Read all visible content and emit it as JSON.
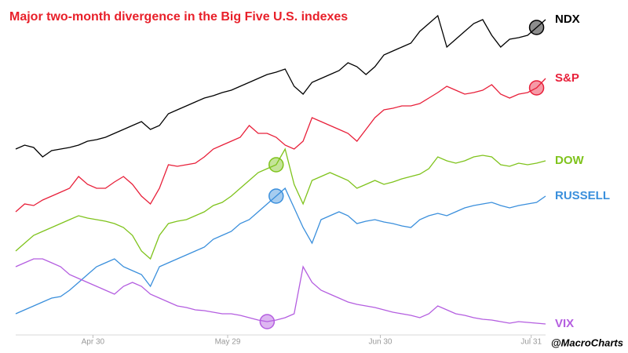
{
  "chart_data": {
    "type": "line",
    "title": "Major two-month divergence in the Big Five U.S. indexes",
    "credit": "@MacroCharts",
    "x": [
      0,
      1,
      2,
      3,
      4,
      5,
      6,
      7,
      8,
      9,
      10,
      11,
      12,
      13,
      14,
      15,
      16,
      17,
      18,
      19,
      20,
      21,
      22,
      23,
      24,
      25,
      26,
      27,
      28,
      29,
      30,
      31,
      32,
      33,
      34,
      35,
      36,
      37,
      38,
      39,
      40,
      41,
      42,
      43,
      44,
      45,
      46,
      47,
      48,
      49,
      50,
      51,
      52,
      53,
      54,
      55,
      56,
      57,
      58,
      59
    ],
    "xlim": [
      0,
      59
    ],
    "xticks": [
      {
        "value": 8.6,
        "label": "Apr 30"
      },
      {
        "value": 23.6,
        "label": "May 29"
      },
      {
        "value": 40.6,
        "label": "Jun 30"
      },
      {
        "value": 57.4,
        "label": "Jul 31"
      }
    ],
    "ylim": [
      0,
      410
    ],
    "series": [
      {
        "name": "NDX",
        "color": "#000000",
        "marker_index": 58,
        "values": [
          235,
          240,
          237,
          225,
          233,
          235,
          237,
          240,
          245,
          247,
          250,
          255,
          260,
          265,
          270,
          260,
          265,
          280,
          285,
          290,
          295,
          300,
          303,
          307,
          310,
          315,
          320,
          325,
          330,
          333,
          337,
          315,
          305,
          320,
          325,
          330,
          335,
          345,
          340,
          330,
          340,
          355,
          360,
          365,
          370,
          385,
          395,
          405,
          365,
          375,
          385,
          395,
          400,
          380,
          365,
          375,
          377,
          380,
          390,
          400
        ]
      },
      {
        "name": "S&P",
        "color": "#e8203a",
        "marker_index": 58,
        "values": [
          155,
          165,
          163,
          170,
          175,
          180,
          185,
          200,
          190,
          185,
          185,
          193,
          200,
          190,
          175,
          165,
          185,
          215,
          213,
          215,
          217,
          225,
          235,
          240,
          245,
          250,
          265,
          255,
          255,
          250,
          240,
          235,
          245,
          275,
          270,
          265,
          260,
          255,
          245,
          260,
          275,
          285,
          287,
          290,
          290,
          293,
          300,
          307,
          315,
          310,
          305,
          307,
          310,
          317,
          305,
          300,
          305,
          307,
          313,
          325
        ]
      },
      {
        "name": "DOW",
        "color": "#7fc31c",
        "marker_index": 29,
        "values": [
          105,
          115,
          125,
          130,
          135,
          140,
          145,
          150,
          147,
          145,
          143,
          140,
          135,
          125,
          105,
          95,
          125,
          140,
          143,
          145,
          150,
          155,
          163,
          167,
          175,
          185,
          195,
          205,
          210,
          215,
          235,
          190,
          165,
          195,
          200,
          205,
          200,
          195,
          185,
          190,
          195,
          190,
          193,
          197,
          200,
          203,
          210,
          225,
          220,
          217,
          220,
          225,
          227,
          225,
          215,
          213,
          217,
          215,
          217,
          220
        ]
      },
      {
        "name": "RUSSELL",
        "color": "#3a8fdc",
        "marker_index": 29,
        "values": [
          25,
          30,
          35,
          40,
          45,
          47,
          55,
          65,
          75,
          85,
          90,
          95,
          85,
          80,
          75,
          60,
          85,
          90,
          95,
          100,
          105,
          110,
          120,
          125,
          130,
          140,
          145,
          155,
          165,
          175,
          185,
          160,
          135,
          115,
          145,
          150,
          155,
          150,
          140,
          143,
          145,
          142,
          140,
          137,
          135,
          145,
          150,
          153,
          150,
          155,
          160,
          163,
          165,
          167,
          163,
          160,
          163,
          165,
          167,
          175
        ]
      },
      {
        "name": "VIX",
        "color": "#b45ee0",
        "marker_index": 28,
        "values": [
          85,
          90,
          95,
          95,
          90,
          85,
          75,
          70,
          65,
          60,
          55,
          50,
          60,
          65,
          60,
          50,
          45,
          40,
          35,
          33,
          30,
          29,
          27,
          25,
          25,
          23,
          20,
          17,
          15,
          17,
          20,
          25,
          85,
          65,
          55,
          50,
          45,
          40,
          37,
          35,
          33,
          30,
          27,
          25,
          23,
          20,
          25,
          35,
          30,
          25,
          23,
          20,
          18,
          17,
          15,
          13,
          15,
          14,
          13,
          12
        ]
      }
    ]
  }
}
